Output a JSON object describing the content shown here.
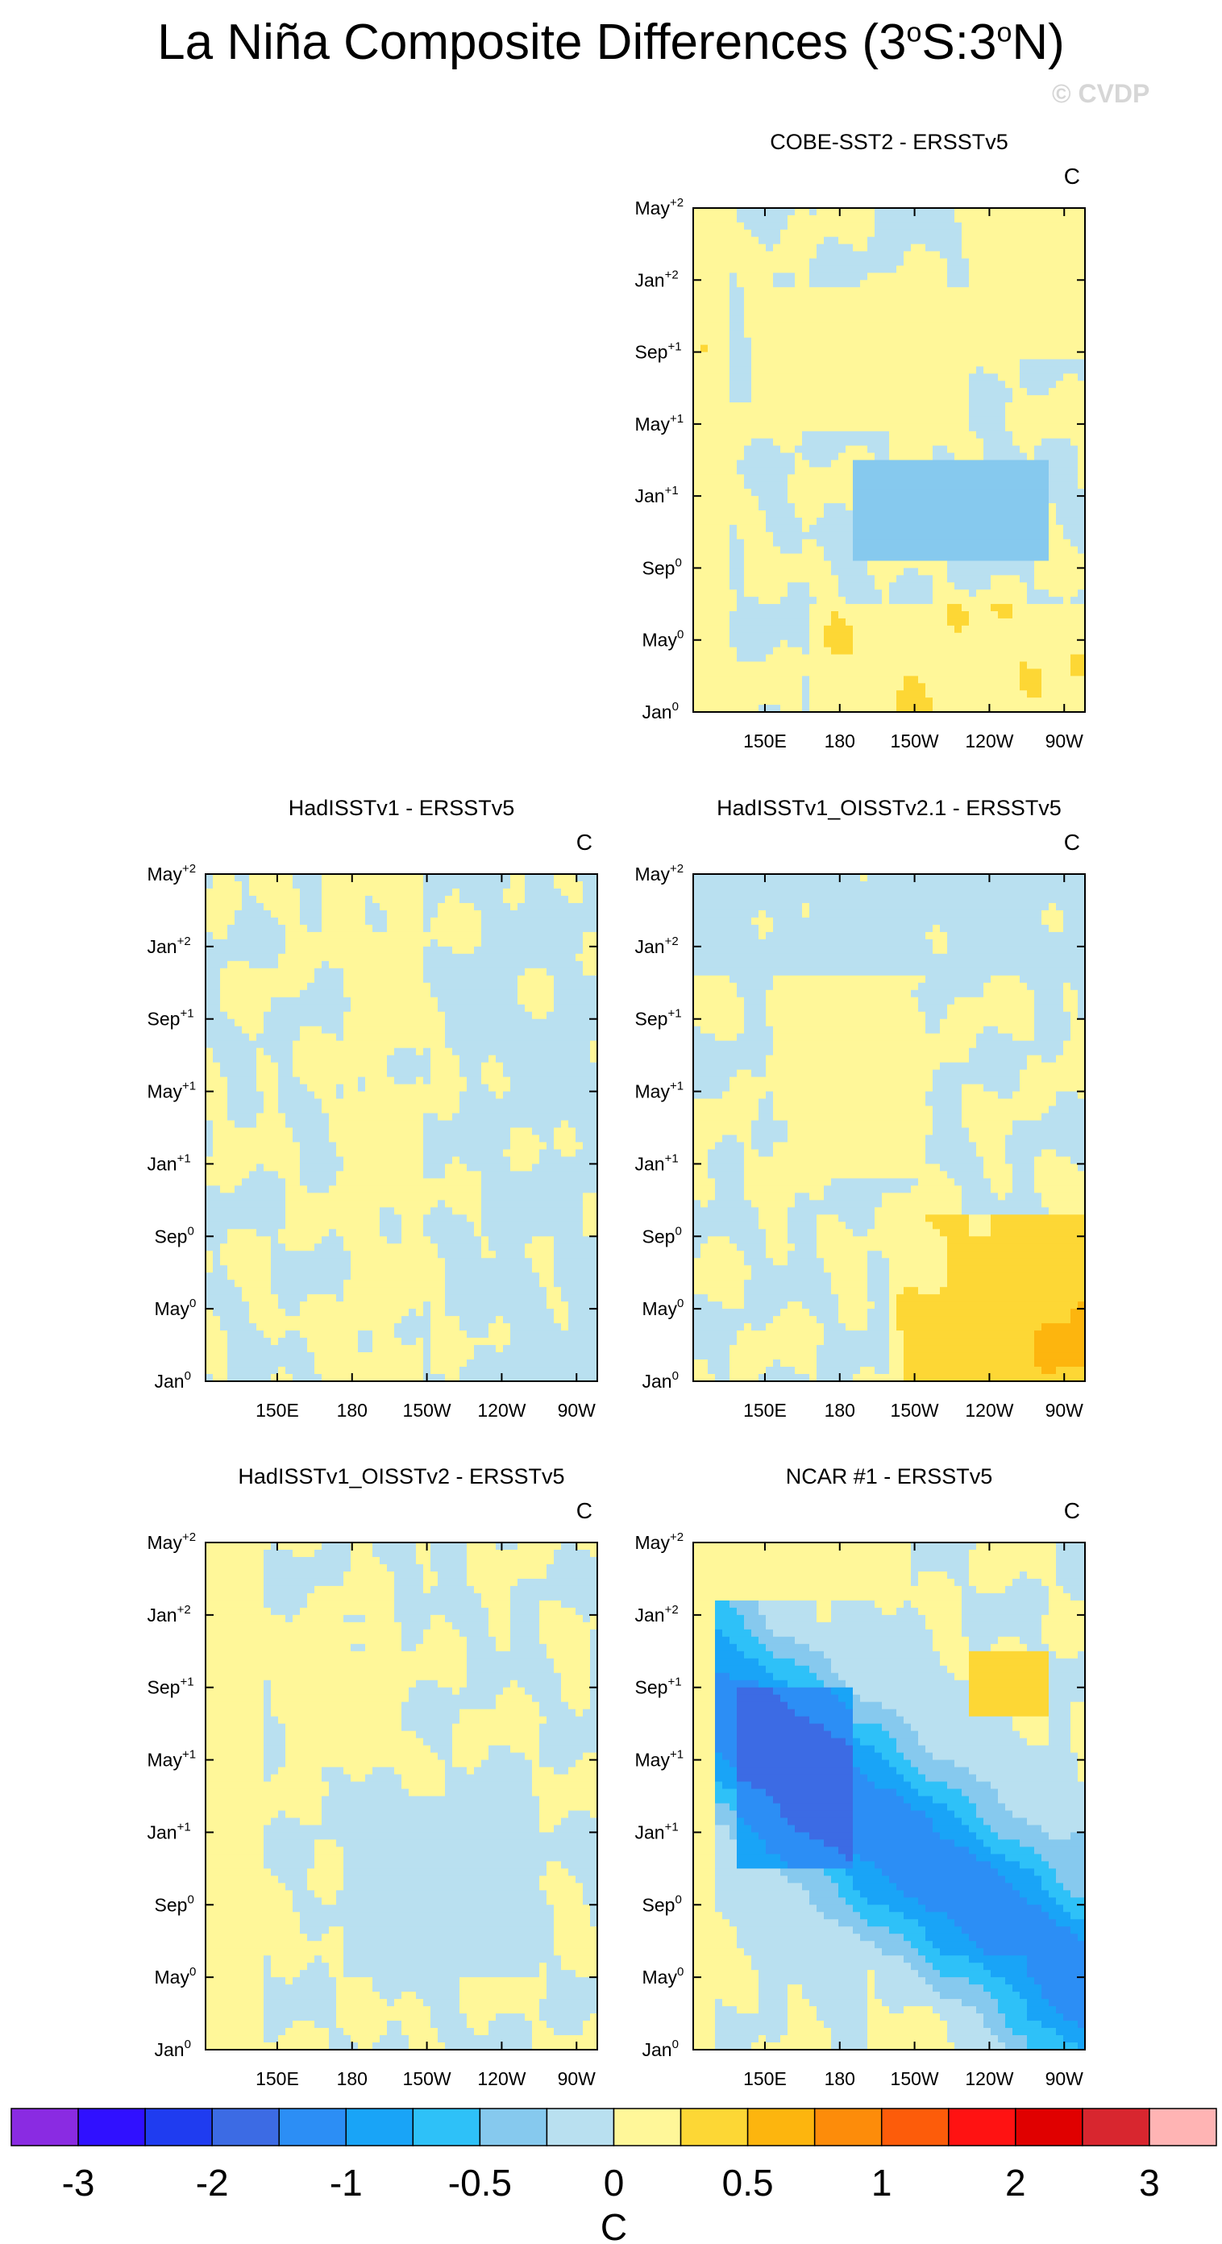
{
  "title": "La Niña Composite Differences (3",
  "title_sup1": "o",
  "title_mid": "S:3",
  "title_sup2": "o",
  "title_end": "N)",
  "watermark": "© CVDP",
  "units": "C",
  "colorbar": {
    "colors": [
      "#8a2be2",
      "#3010ff",
      "#1f3cf0",
      "#3c6be4",
      "#2c8ef5",
      "#19a4f7",
      "#2ec1f8",
      "#86c9ee",
      "#b9e0f0",
      "#fff799",
      "#fdd735",
      "#fdb50e",
      "#fd8c0a",
      "#fd5c0a",
      "#ff1212",
      "#e00000",
      "#d8262f",
      "#ffb4b4"
    ],
    "labels": [
      "-3",
      "-2",
      "-1",
      "-0.5",
      "0",
      "0.5",
      "1",
      "2",
      "3"
    ],
    "label_ticks": [
      1,
      3,
      5,
      7,
      9,
      11,
      13,
      15,
      17
    ],
    "xlabel": "C"
  },
  "chart_data": [
    {
      "type": "heatmap",
      "title": "COBE-SST2 - ERSSTv5",
      "unit": "C",
      "xticks": [
        "150E",
        "180",
        "150W",
        "120W",
        "90W"
      ],
      "yticks": [
        {
          "base": "Jan",
          "sup": "0"
        },
        {
          "base": "May",
          "sup": "0"
        },
        {
          "base": "Sep",
          "sup": "0"
        },
        {
          "base": "Jan",
          "sup": "+1"
        },
        {
          "base": "May",
          "sup": "+1"
        },
        {
          "base": "Sep",
          "sup": "+1"
        },
        {
          "base": "Jan",
          "sup": "+2"
        },
        {
          "base": "May",
          "sup": "+2"
        }
      ],
      "pattern": "cobe"
    },
    {
      "type": "heatmap",
      "title": "HadISSTv1 - ERSSTv5",
      "unit": "C",
      "xticks": [
        "150E",
        "180",
        "150W",
        "120W",
        "90W"
      ],
      "yticks": [
        {
          "base": "Jan",
          "sup": "0"
        },
        {
          "base": "May",
          "sup": "0"
        },
        {
          "base": "Sep",
          "sup": "0"
        },
        {
          "base": "Jan",
          "sup": "+1"
        },
        {
          "base": "May",
          "sup": "+1"
        },
        {
          "base": "Sep",
          "sup": "+1"
        },
        {
          "base": "Jan",
          "sup": "+2"
        },
        {
          "base": "May",
          "sup": "+2"
        }
      ],
      "pattern": "hadisst"
    },
    {
      "type": "heatmap",
      "title": "HadISSTv1_OISSTv2.1 - ERSSTv5",
      "unit": "C",
      "xticks": [
        "150E",
        "180",
        "150W",
        "120W",
        "90W"
      ],
      "yticks": [
        {
          "base": "Jan",
          "sup": "0"
        },
        {
          "base": "May",
          "sup": "0"
        },
        {
          "base": "Sep",
          "sup": "0"
        },
        {
          "base": "Jan",
          "sup": "+1"
        },
        {
          "base": "May",
          "sup": "+1"
        },
        {
          "base": "Sep",
          "sup": "+1"
        },
        {
          "base": "Jan",
          "sup": "+2"
        },
        {
          "base": "May",
          "sup": "+2"
        }
      ],
      "pattern": "oisst21"
    },
    {
      "type": "heatmap",
      "title": "HadISSTv1_OISSTv2 - ERSSTv5",
      "unit": "C",
      "xticks": [
        "150E",
        "180",
        "150W",
        "120W",
        "90W"
      ],
      "yticks": [
        {
          "base": "Jan",
          "sup": "0"
        },
        {
          "base": "May",
          "sup": "0"
        },
        {
          "base": "Sep",
          "sup": "0"
        },
        {
          "base": "Jan",
          "sup": "+1"
        },
        {
          "base": "May",
          "sup": "+1"
        },
        {
          "base": "Sep",
          "sup": "+1"
        },
        {
          "base": "Jan",
          "sup": "+2"
        },
        {
          "base": "May",
          "sup": "+2"
        }
      ],
      "pattern": "oisst2"
    },
    {
      "type": "heatmap",
      "title": "NCAR #1 - ERSSTv5",
      "unit": "C",
      "xticks": [
        "150E",
        "180",
        "150W",
        "120W",
        "90W"
      ],
      "yticks": [
        {
          "base": "Jan",
          "sup": "0"
        },
        {
          "base": "May",
          "sup": "0"
        },
        {
          "base": "Sep",
          "sup": "0"
        },
        {
          "base": "Jan",
          "sup": "+1"
        },
        {
          "base": "May",
          "sup": "+1"
        },
        {
          "base": "Sep",
          "sup": "+1"
        },
        {
          "base": "Jan",
          "sup": "+2"
        },
        {
          "base": "May",
          "sup": "+2"
        }
      ],
      "pattern": "ncar"
    }
  ]
}
